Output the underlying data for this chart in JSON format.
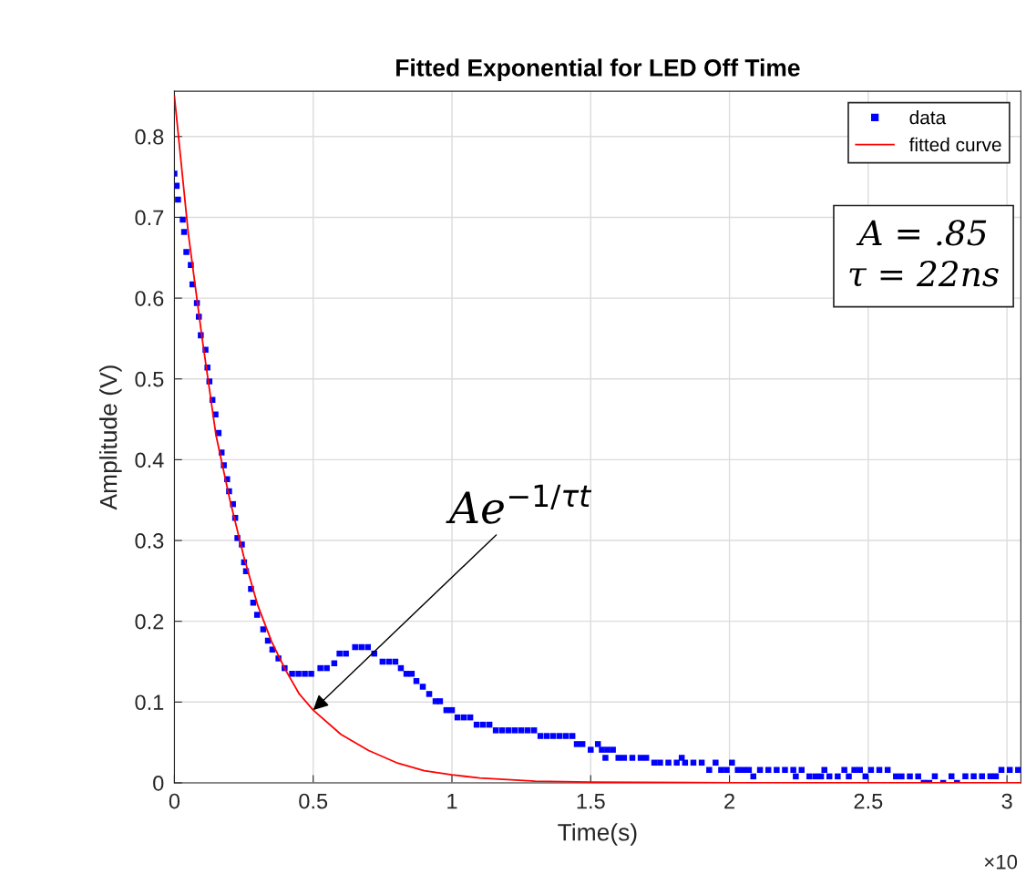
{
  "chart_data": {
    "type": "scatter",
    "title": "Fitted Exponential for LED Off Time",
    "xlabel": "Time(s)",
    "ylabel": "Amplitude (V)",
    "xlim": [
      0,
      3.05
    ],
    "ylim": [
      0,
      0.856
    ],
    "xticks": [
      0,
      0.5,
      1,
      1.5,
      2,
      2.5,
      3
    ],
    "yticks": [
      0,
      0.1,
      0.2,
      0.3,
      0.4,
      0.5,
      0.6,
      0.7,
      0.8
    ],
    "grid": true,
    "legend": "top right",
    "marker": "square",
    "series": [
      {
        "name": "data",
        "color": "#0000ff",
        "x": [
          0.0,
          0.008,
          0.013,
          0.03,
          0.035,
          0.043,
          0.059,
          0.065,
          0.081,
          0.088,
          0.095,
          0.112,
          0.119,
          0.126,
          0.137,
          0.148,
          0.159,
          0.17,
          0.178,
          0.19,
          0.197,
          0.211,
          0.219,
          0.227,
          0.243,
          0.251,
          0.258,
          0.276,
          0.284,
          0.298,
          0.32,
          0.337,
          0.353,
          0.375,
          0.397,
          0.424,
          0.447,
          0.47,
          0.493,
          0.526,
          0.549,
          0.576,
          0.595,
          0.618,
          0.651,
          0.674,
          0.697,
          0.72,
          0.75,
          0.773,
          0.796,
          0.816,
          0.836,
          0.855,
          0.872,
          0.895,
          0.918,
          0.941,
          0.957,
          0.98,
          1.0,
          1.02,
          1.043,
          1.066,
          1.089,
          1.112,
          1.135,
          1.158,
          1.181,
          1.204,
          1.227,
          1.25,
          1.273,
          1.296,
          1.319,
          1.342,
          1.365,
          1.388,
          1.411,
          1.434,
          1.45,
          1.47,
          1.5,
          1.526,
          1.553,
          1.54,
          1.56,
          1.58,
          1.6,
          1.62,
          1.65,
          1.68,
          1.7,
          1.729,
          1.75,
          1.78,
          1.81,
          1.828,
          1.84,
          1.87,
          1.9,
          1.927,
          1.95,
          1.97,
          1.99,
          2.009,
          2.03,
          2.05,
          2.07,
          2.086,
          2.11,
          2.14,
          2.17,
          2.2,
          2.23,
          2.239,
          2.26,
          2.288,
          2.31,
          2.33,
          2.342,
          2.36,
          2.39,
          2.414,
          2.43,
          2.45,
          2.47,
          2.49,
          2.51,
          2.54,
          2.57,
          2.6,
          2.62,
          2.65,
          2.68,
          2.7,
          2.72,
          2.74,
          2.77,
          2.8,
          2.82,
          2.85,
          2.88,
          2.91,
          2.94,
          2.96,
          2.98,
          3.01,
          3.04
        ],
        "values": [
          0.754,
          0.739,
          0.722,
          0.697,
          0.682,
          0.657,
          0.641,
          0.617,
          0.594,
          0.577,
          0.554,
          0.536,
          0.514,
          0.497,
          0.474,
          0.456,
          0.433,
          0.409,
          0.393,
          0.376,
          0.361,
          0.345,
          0.328,
          0.303,
          0.295,
          0.273,
          0.262,
          0.24,
          0.223,
          0.208,
          0.19,
          0.176,
          0.165,
          0.154,
          0.142,
          0.135,
          0.135,
          0.135,
          0.135,
          0.142,
          0.142,
          0.148,
          0.16,
          0.16,
          0.168,
          0.168,
          0.168,
          0.16,
          0.15,
          0.15,
          0.15,
          0.142,
          0.135,
          0.135,
          0.126,
          0.119,
          0.11,
          0.101,
          0.101,
          0.09,
          0.09,
          0.081,
          0.081,
          0.081,
          0.072,
          0.072,
          0.072,
          0.065,
          0.065,
          0.065,
          0.065,
          0.065,
          0.065,
          0.065,
          0.058,
          0.058,
          0.058,
          0.058,
          0.058,
          0.058,
          0.048,
          0.048,
          0.041,
          0.048,
          0.031,
          0.041,
          0.041,
          0.041,
          0.031,
          0.031,
          0.031,
          0.031,
          0.031,
          0.025,
          0.025,
          0.025,
          0.025,
          0.031,
          0.025,
          0.025,
          0.025,
          0.016,
          0.025,
          0.016,
          0.016,
          0.025,
          0.016,
          0.016,
          0.016,
          0.008,
          0.016,
          0.016,
          0.016,
          0.016,
          0.016,
          0.008,
          0.016,
          0.008,
          0.008,
          0.008,
          0.016,
          0.008,
          0.008,
          0.016,
          0.008,
          0.016,
          0.016,
          0.008,
          0.016,
          0.016,
          0.016,
          0.008,
          0.008,
          0.008,
          0.008,
          0.0,
          0.0,
          0.008,
          0.0,
          0.008,
          0.0,
          0.008,
          0.008,
          0.008,
          0.008,
          0.008,
          0.016,
          0.016,
          0.016
        ]
      },
      {
        "name": "fitted curve",
        "type": "line",
        "color": "#ff0000",
        "marker": "none",
        "x": [
          0,
          0.05,
          0.1,
          0.15,
          0.2,
          0.25,
          0.3,
          0.35,
          0.4,
          0.45,
          0.5,
          0.6,
          0.7,
          0.8,
          0.9,
          1.0,
          1.1,
          1.2,
          1.3,
          1.5,
          2.0,
          2.5,
          3.05
        ],
        "values": [
          0.85,
          0.68,
          0.55,
          0.43,
          0.35,
          0.28,
          0.22,
          0.175,
          0.14,
          0.11,
          0.09,
          0.06,
          0.04,
          0.025,
          0.015,
          0.01,
          0.006,
          0.004,
          0.002,
          0.001,
          0,
          0,
          0
        ]
      }
    ],
    "annotations": [
      {
        "text": "Ae$^{−1/τt}$",
        "x": 0.5,
        "y": 0.09
      },
      "A = .85\nτ = 22ns",
      "×10"
    ]
  }
}
